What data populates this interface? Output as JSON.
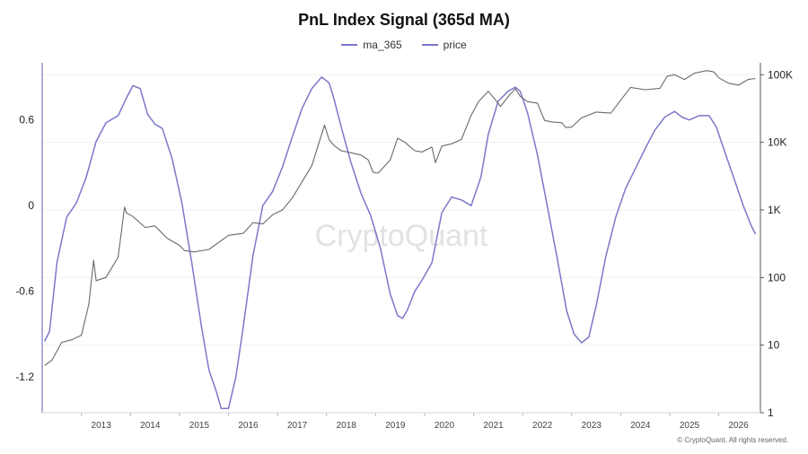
{
  "chart_data": {
    "type": "line",
    "title": "PnL Index Signal (365d MA)",
    "watermark": "CryptoQuant",
    "copyright": "© CryptoQuant. All rights reserved.",
    "legend_position": "top-center",
    "grid": false,
    "x_axis": {
      "type": "date",
      "range": [
        2012.2,
        2026.85
      ],
      "tick_labels": [
        "2013",
        "2014",
        "2015",
        "2016",
        "2017",
        "2018",
        "2019",
        "2020",
        "2021",
        "2022",
        "2023",
        "2024",
        "2025",
        "2026"
      ],
      "tick_values": [
        2013,
        2014,
        2015,
        2016,
        2017,
        2018,
        2019,
        2020,
        2021,
        2022,
        2023,
        2024,
        2025,
        2026
      ]
    },
    "y_left": {
      "range": [
        -1.45,
        1.0
      ],
      "tick_labels": [
        "0.6",
        "0",
        "-0.6",
        "-1.2"
      ],
      "tick_values": [
        0.6,
        0,
        -0.6,
        -1.2
      ]
    },
    "y_right": {
      "scale": "log",
      "range": [
        1,
        150000
      ],
      "tick_labels": [
        "100K",
        "10K",
        "1K",
        "100",
        "10",
        "1"
      ],
      "tick_values": [
        100000,
        10000,
        1000,
        100,
        10,
        1
      ]
    },
    "series": [
      {
        "name": "ma_365",
        "axis": "left",
        "color": "#7b78c9",
        "x": [
          2012.25,
          2012.35,
          2012.5,
          2012.7,
          2012.9,
          2013.1,
          2013.3,
          2013.5,
          2013.75,
          2013.9,
          2014.05,
          2014.2,
          2014.35,
          2014.5,
          2014.65,
          2014.85,
          2015.05,
          2015.25,
          2015.45,
          2015.6,
          2015.75,
          2015.85,
          2016.0,
          2016.15,
          2016.3,
          2016.5,
          2016.7,
          2016.9,
          2017.1,
          2017.3,
          2017.5,
          2017.7,
          2017.9,
          2018.05,
          2018.15,
          2018.3,
          2018.5,
          2018.7,
          2018.9,
          2019.1,
          2019.3,
          2019.45,
          2019.55,
          2019.65,
          2019.8,
          2019.95,
          2020.15,
          2020.35,
          2020.55,
          2020.75,
          2020.95,
          2021.15,
          2021.3,
          2021.5,
          2021.7,
          2021.85,
          2021.95,
          2022.1,
          2022.3,
          2022.5,
          2022.7,
          2022.9,
          2023.05,
          2023.2,
          2023.35,
          2023.5,
          2023.7,
          2023.9,
          2024.1,
          2024.3,
          2024.5,
          2024.7,
          2024.9,
          2025.1,
          2025.25,
          2025.4,
          2025.6,
          2025.8,
          2025.95,
          2026.1,
          2026.3,
          2026.5,
          2026.65,
          2026.75
        ],
        "values": [
          -0.95,
          -0.88,
          -0.4,
          -0.08,
          0.02,
          0.2,
          0.45,
          0.58,
          0.63,
          0.74,
          0.84,
          0.82,
          0.64,
          0.57,
          0.54,
          0.33,
          0.02,
          -0.4,
          -0.85,
          -1.15,
          -1.3,
          -1.42,
          -1.42,
          -1.2,
          -0.85,
          -0.35,
          0.0,
          0.1,
          0.27,
          0.48,
          0.68,
          0.82,
          0.9,
          0.86,
          0.75,
          0.55,
          0.3,
          0.09,
          -0.07,
          -0.3,
          -0.62,
          -0.77,
          -0.79,
          -0.73,
          -0.6,
          -0.52,
          -0.4,
          -0.05,
          0.06,
          0.04,
          0.0,
          0.2,
          0.5,
          0.73,
          0.8,
          0.83,
          0.8,
          0.65,
          0.36,
          0.0,
          -0.36,
          -0.74,
          -0.9,
          -0.96,
          -0.92,
          -0.7,
          -0.35,
          -0.08,
          0.12,
          0.26,
          0.4,
          0.53,
          0.62,
          0.66,
          0.62,
          0.6,
          0.63,
          0.63,
          0.55,
          0.4,
          0.2,
          0.0,
          -0.13,
          -0.2
        ]
      },
      {
        "name": "price",
        "axis": "right",
        "color": "#6a6a6a",
        "x": [
          2012.25,
          2012.4,
          2012.6,
          2012.8,
          2013.0,
          2013.15,
          2013.25,
          2013.3,
          2013.5,
          2013.75,
          2013.88,
          2013.92,
          2014.05,
          2014.3,
          2014.5,
          2014.75,
          2015.0,
          2015.1,
          2015.3,
          2015.6,
          2015.8,
          2016.0,
          2016.3,
          2016.5,
          2016.7,
          2016.9,
          2017.1,
          2017.3,
          2017.5,
          2017.7,
          2017.85,
          2017.96,
          2018.05,
          2018.15,
          2018.3,
          2018.5,
          2018.7,
          2018.85,
          2018.95,
          2019.05,
          2019.3,
          2019.45,
          2019.6,
          2019.8,
          2019.95,
          2020.15,
          2020.22,
          2020.35,
          2020.55,
          2020.75,
          2020.95,
          2021.1,
          2021.3,
          2021.45,
          2021.55,
          2021.7,
          2021.85,
          2021.95,
          2022.1,
          2022.3,
          2022.45,
          2022.6,
          2022.8,
          2022.88,
          2023.0,
          2023.2,
          2023.5,
          2023.8,
          2024.0,
          2024.2,
          2024.5,
          2024.8,
          2024.95,
          2025.1,
          2025.3,
          2025.5,
          2025.75,
          2025.9,
          2026.0,
          2026.2,
          2026.4,
          2026.6,
          2026.75
        ],
        "values": [
          5,
          6,
          11,
          12,
          14,
          40,
          180,
          90,
          100,
          200,
          1100,
          900,
          800,
          550,
          580,
          380,
          300,
          250,
          240,
          260,
          330,
          420,
          450,
          650,
          620,
          850,
          1000,
          1500,
          2600,
          4500,
          10000,
          18000,
          11000,
          9000,
          7500,
          7000,
          6500,
          5500,
          3600,
          3500,
          5500,
          11500,
          10000,
          7500,
          7200,
          8500,
          5000,
          8800,
          9500,
          11000,
          25000,
          40000,
          57000,
          42000,
          34000,
          47000,
          62000,
          48000,
          40000,
          38000,
          21000,
          20000,
          19500,
          16500,
          16800,
          23000,
          28000,
          27000,
          42000,
          65000,
          60000,
          63000,
          95000,
          100000,
          85000,
          105000,
          115000,
          110000,
          90000,
          75000,
          70000,
          85000,
          88000
        ]
      }
    ]
  }
}
